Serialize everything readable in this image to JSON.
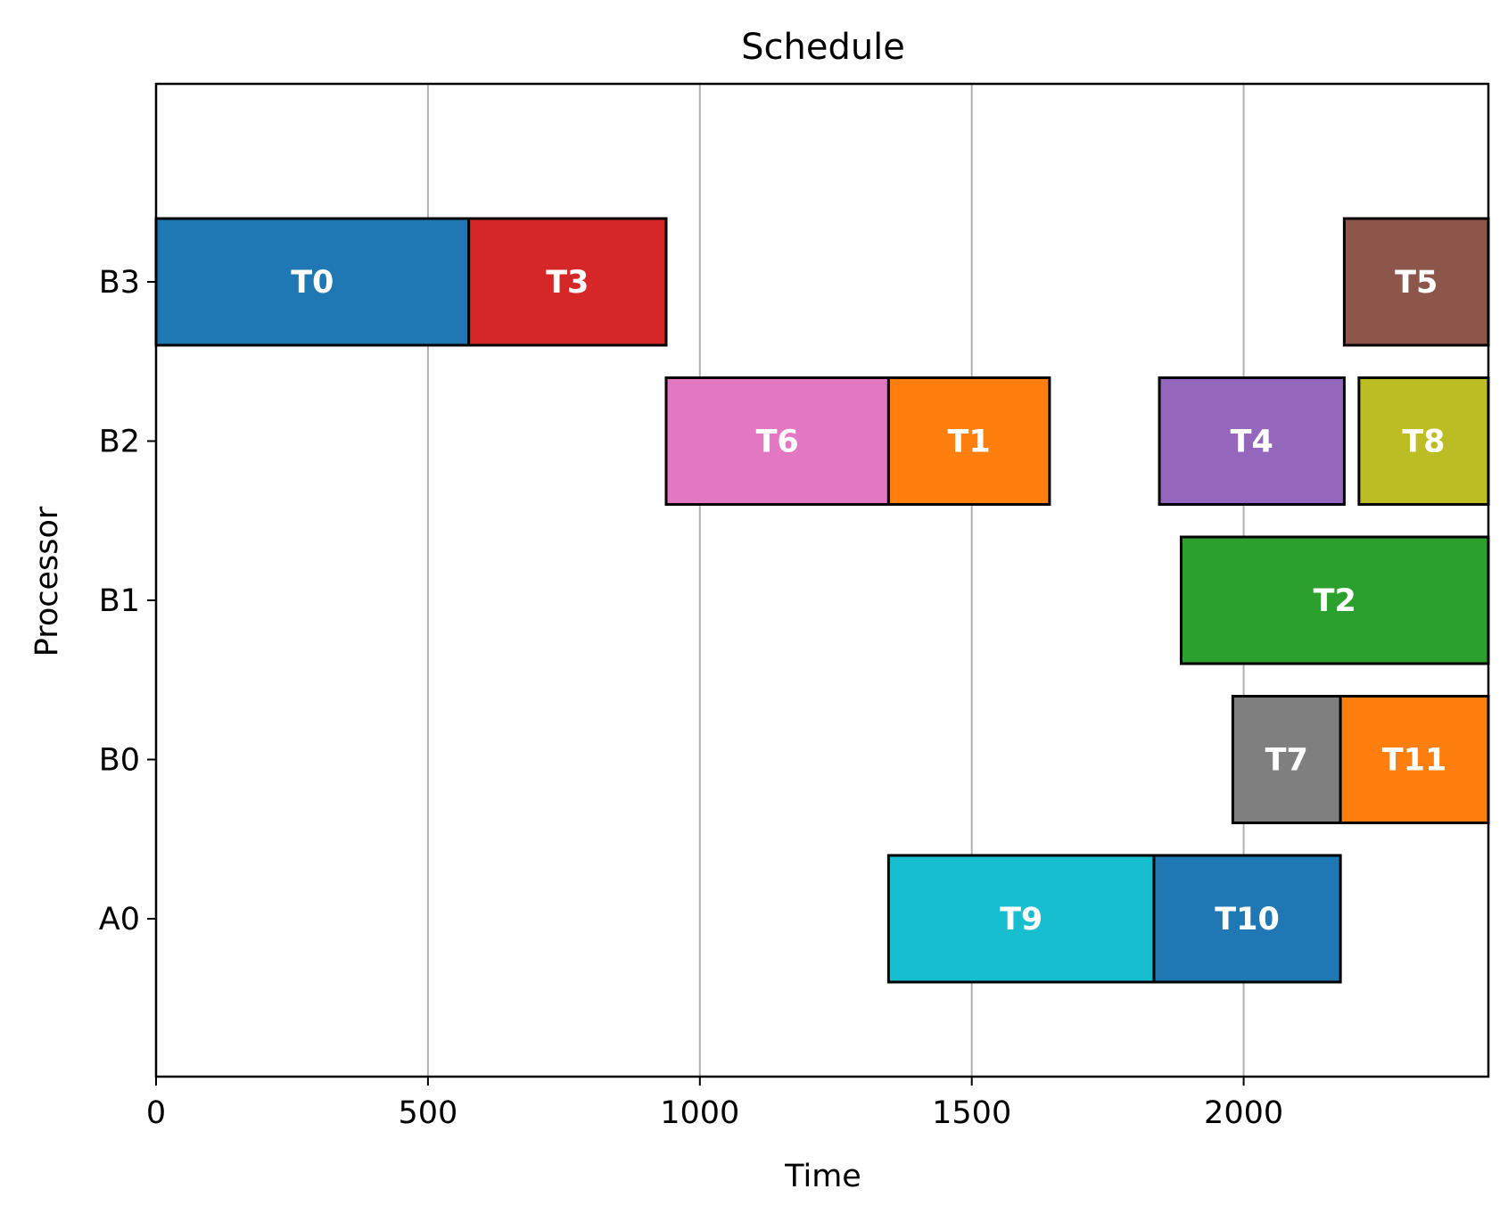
{
  "chart_data": {
    "type": "gantt",
    "title": "Schedule",
    "xlabel": "Time",
    "ylabel": "Processor",
    "xlim": [
      0,
      2450
    ],
    "xticks": [
      0,
      500,
      1000,
      1500,
      2000
    ],
    "xtick_labels": [
      "0",
      "500",
      "1000",
      "1500",
      "2000"
    ],
    "processors": [
      "A0",
      "B0",
      "B1",
      "B2",
      "B3"
    ],
    "grid": "x-major",
    "tasks": [
      {
        "name": "T0",
        "processor": "B3",
        "start": 0,
        "end": 575,
        "color": "#1f77b4"
      },
      {
        "name": "T3",
        "processor": "B3",
        "start": 575,
        "end": 938,
        "color": "#d62728"
      },
      {
        "name": "T5",
        "processor": "B3",
        "start": 2185,
        "end": 2450,
        "color": "#8c564b"
      },
      {
        "name": "T6",
        "processor": "B2",
        "start": 938,
        "end": 1347,
        "color": "#e377c2"
      },
      {
        "name": "T1",
        "processor": "B2",
        "start": 1347,
        "end": 1643,
        "color": "#ff7f0e"
      },
      {
        "name": "T4",
        "processor": "B2",
        "start": 1845,
        "end": 2185,
        "color": "#9467bd"
      },
      {
        "name": "T8",
        "processor": "B2",
        "start": 2212,
        "end": 2450,
        "color": "#bcbd22"
      },
      {
        "name": "T2",
        "processor": "B1",
        "start": 1885,
        "end": 2450,
        "color": "#2ca02c"
      },
      {
        "name": "T7",
        "processor": "B0",
        "start": 1980,
        "end": 2178,
        "color": "#7f7f7f"
      },
      {
        "name": "T11",
        "processor": "B0",
        "start": 2178,
        "end": 2450,
        "color": "#ff7f0e"
      },
      {
        "name": "T9",
        "processor": "A0",
        "start": 1347,
        "end": 1835,
        "color": "#17becf"
      },
      {
        "name": "T10",
        "processor": "A0",
        "start": 1835,
        "end": 2178,
        "color": "#1f77b4"
      }
    ]
  }
}
